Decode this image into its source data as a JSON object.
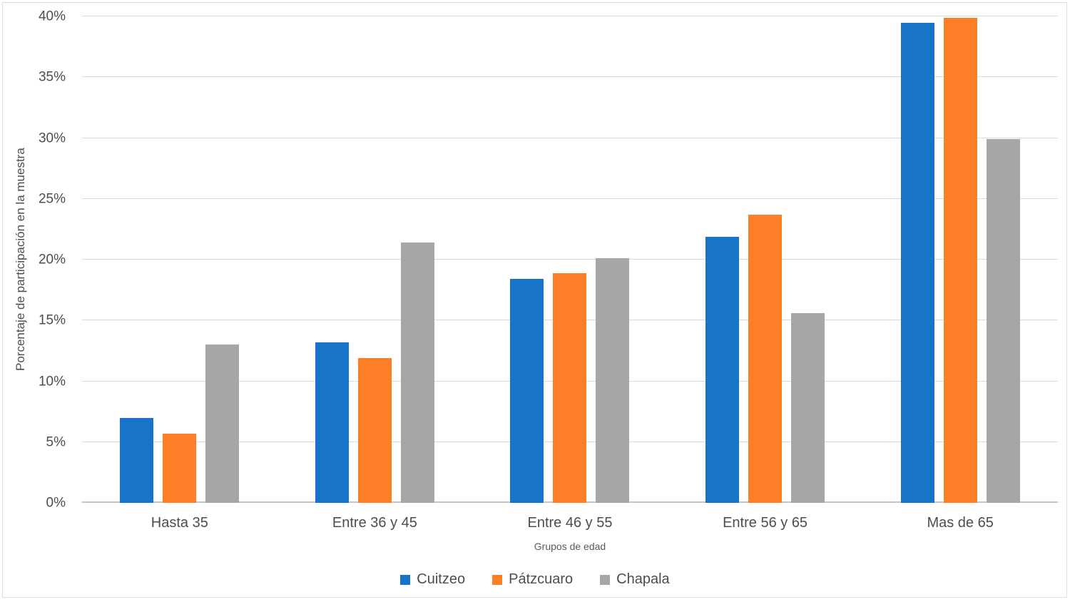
{
  "chart_data": {
    "type": "bar",
    "title": "",
    "xlabel": "Grupos de edad",
    "ylabel": "Porcentaje de participación en la muestra",
    "categories": [
      "Hasta 35",
      "Entre 36 y 45",
      "Entre 46 y 55",
      "Entre 56 y 65",
      "Mas de 65"
    ],
    "series": [
      {
        "name": "Cuitzeo",
        "color": "#1874C8",
        "values": [
          7.0,
          13.2,
          18.4,
          21.9,
          39.5
        ]
      },
      {
        "name": "Pátzcuaro",
        "color": "#FC7E27",
        "values": [
          5.7,
          11.9,
          18.9,
          23.7,
          39.9
        ]
      },
      {
        "name": "Chapala",
        "color": "#A6A6A6",
        "values": [
          13.0,
          21.4,
          20.1,
          15.6,
          29.9
        ]
      }
    ],
    "ylim": [
      0,
      40
    ],
    "ytick_step": 5,
    "ytick_suffix": "%",
    "grid": true,
    "legend_position": "bottom"
  },
  "colors": {
    "gridline": "#D9D9D9",
    "axis_line": "#C6C6C6",
    "tick_text": "#4D4D4D",
    "title_text": "#595959",
    "border": "#DEDEDE",
    "background": "#FFFFFF"
  }
}
